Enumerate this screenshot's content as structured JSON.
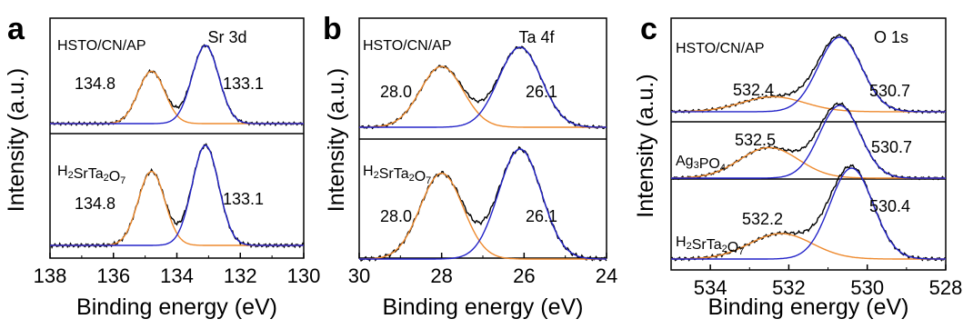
{
  "chart_data": [
    {
      "panel": "a",
      "type": "line",
      "title": "Sr 3d",
      "xlabel": "Binding energy (eV)",
      "ylabel": "Intensity (a.u.)",
      "xlim": [
        138,
        130
      ],
      "xticks": [
        "138",
        "136",
        "134",
        "132",
        "130"
      ],
      "reversed_x": true,
      "spectra": [
        {
          "sample": "HSTO/CN/AP",
          "baseline": 0.0,
          "peaks": [
            {
              "center": 134.8,
              "label": "134.8",
              "height": 0.67,
              "width": 0.42
            },
            {
              "center": 133.1,
              "label": "133.1",
              "height": 1.0,
              "width": 0.42
            }
          ]
        },
        {
          "sample": "H2SrTa2O7",
          "baseline": 0.0,
          "peaks": [
            {
              "center": 134.8,
              "label": "134.8",
              "height": 0.74,
              "width": 0.42
            },
            {
              "center": 133.1,
              "label": "133.1",
              "height": 1.0,
              "width": 0.42
            }
          ]
        }
      ],
      "series": [
        {
          "name": "",
          "role": "raw",
          "color": "#000000"
        },
        {
          "name": "",
          "role": "fit-peak-1",
          "color": "#ee8a2e"
        },
        {
          "name": "",
          "role": "fit-peak-2",
          "color": "#2323c8"
        }
      ]
    },
    {
      "panel": "b",
      "type": "line",
      "title": "Ta 4f",
      "xlabel": "Binding energy (eV)",
      "ylabel": "Intensity (a.u.)",
      "xlim": [
        30,
        24
      ],
      "xticks": [
        "30",
        "28",
        "26",
        "24"
      ],
      "reversed_x": true,
      "spectra": [
        {
          "sample": "HSTO/CN/AP",
          "baseline": 0.0,
          "peaks": [
            {
              "center": 28.0,
              "label": "28.0",
              "height": 0.76,
              "width": 0.52
            },
            {
              "center": 26.1,
              "label": "26.1",
              "height": 1.0,
              "width": 0.52
            }
          ]
        },
        {
          "sample": "H2SrTa2O7",
          "baseline": 0.0,
          "peaks": [
            {
              "center": 28.0,
              "label": "28.0",
              "height": 0.78,
              "width": 0.52
            },
            {
              "center": 26.1,
              "label": "26.1",
              "height": 1.0,
              "width": 0.52
            }
          ]
        }
      ],
      "series": [
        {
          "name": "",
          "role": "raw",
          "color": "#000000"
        },
        {
          "name": "",
          "role": "fit-peak-1",
          "color": "#ee8a2e"
        },
        {
          "name": "",
          "role": "fit-peak-2",
          "color": "#2323c8"
        }
      ]
    },
    {
      "panel": "c",
      "type": "line",
      "title": "O 1s",
      "xlabel": "Binding energy (eV)",
      "ylabel": "Intensity (a.u.)",
      "xlim": [
        535,
        528
      ],
      "xticks": [
        "534",
        "532",
        "530",
        "528"
      ],
      "reversed_x": true,
      "spectra": [
        {
          "sample": "HSTO/CN/AP",
          "baseline": 0.05,
          "peaks": [
            {
              "center": 532.4,
              "label": "532.4",
              "height": 0.2,
              "width": 0.8
            },
            {
              "center": 530.7,
              "label": "530.7",
              "height": 1.0,
              "width": 0.55
            }
          ]
        },
        {
          "sample": "Ag3PO4",
          "baseline": 0.05,
          "peaks": [
            {
              "center": 532.5,
              "label": "532.5",
              "height": 0.42,
              "width": 0.75
            },
            {
              "center": 530.7,
              "label": "530.7",
              "height": 1.0,
              "width": 0.52
            }
          ]
        },
        {
          "sample": "H2SrTa2O7",
          "baseline": 0.05,
          "peaks": [
            {
              "center": 532.2,
              "label": "532.2",
              "height": 0.28,
              "width": 0.8
            },
            {
              "center": 530.4,
              "label": "530.4",
              "height": 1.0,
              "width": 0.55
            }
          ]
        }
      ],
      "series": [
        {
          "name": "",
          "role": "raw",
          "color": "#000000"
        },
        {
          "name": "",
          "role": "fit-peak-1",
          "color": "#ee8a2e"
        },
        {
          "name": "",
          "role": "fit-peak-2",
          "color": "#2323c8"
        }
      ]
    }
  ]
}
